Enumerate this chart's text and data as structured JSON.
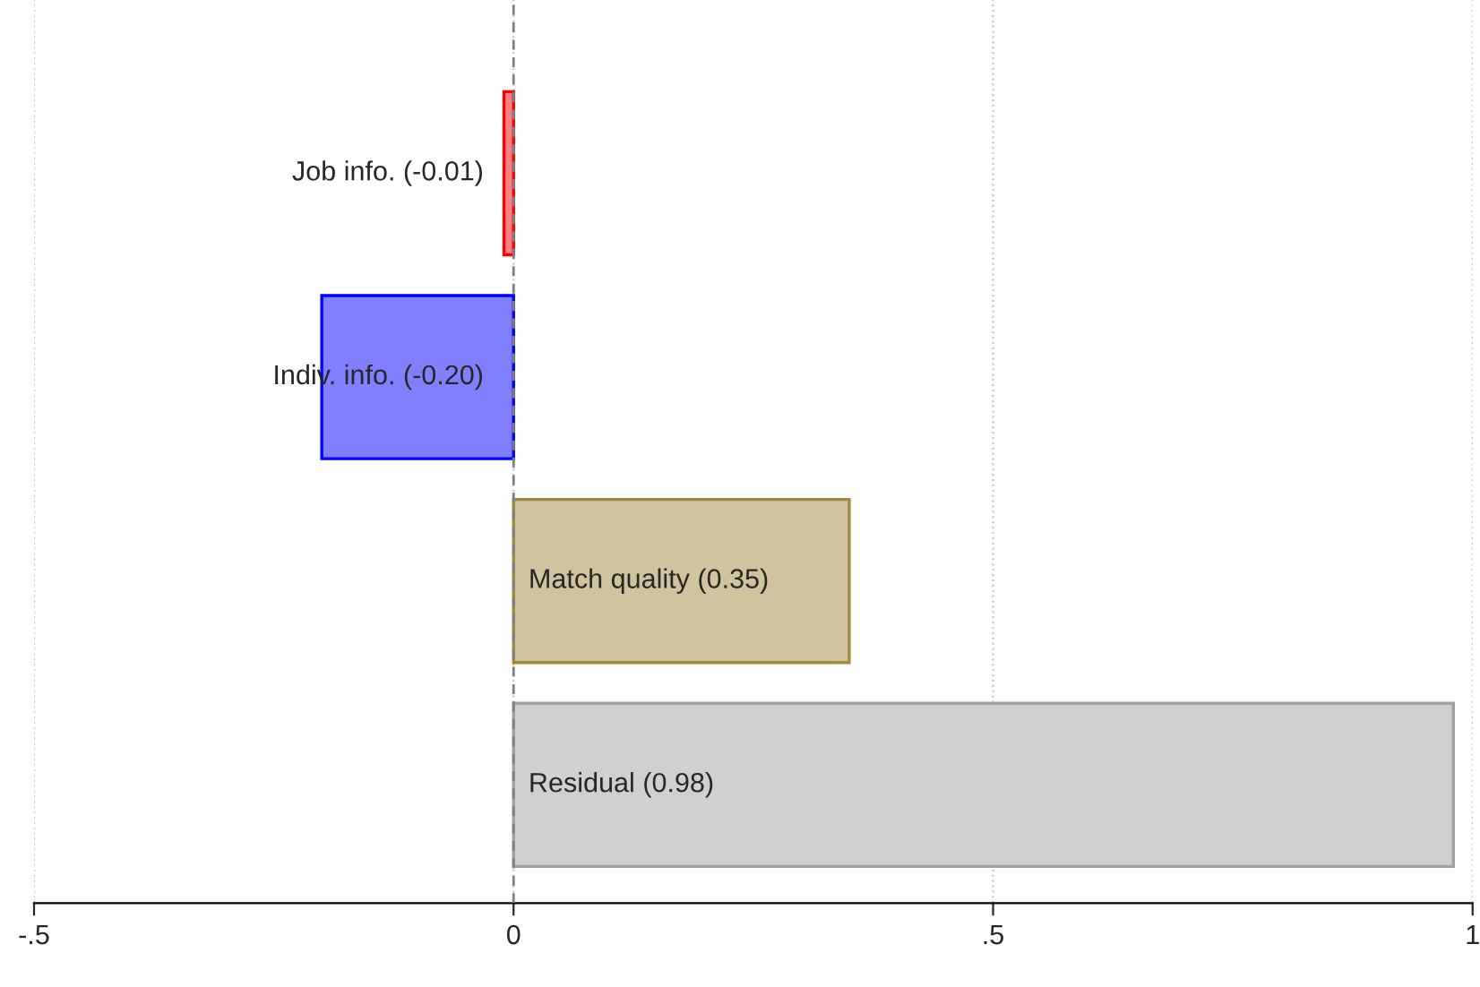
{
  "chart_data": {
    "type": "bar",
    "orientation": "horizontal",
    "categories": [
      null,
      null,
      null,
      null
    ],
    "values": [
      -0.01,
      -0.2,
      0.35,
      0.98
    ],
    "colors": [
      "#ff8080",
      "#8080ff",
      "#cfc49f",
      "#d0d0d0"
    ],
    "value_labels": [
      "Job info. (-0.01)",
      "Indiv. info. (-0.20)",
      "Match quality (0.35)",
      "Residual (0.98)"
    ],
    "xlim": [
      -0.5,
      1
    ],
    "xticks": [
      {
        "value": -0.5,
        "label": "-.5"
      },
      0,
      {
        "value": 0.5,
        "label": ".5"
      },
      1
    ],
    "grid": "x",
    "ref_lines": [
      {
        "axis": "x",
        "value": 0,
        "color": "#808080",
        "line_style": "dashed"
      }
    ]
  }
}
